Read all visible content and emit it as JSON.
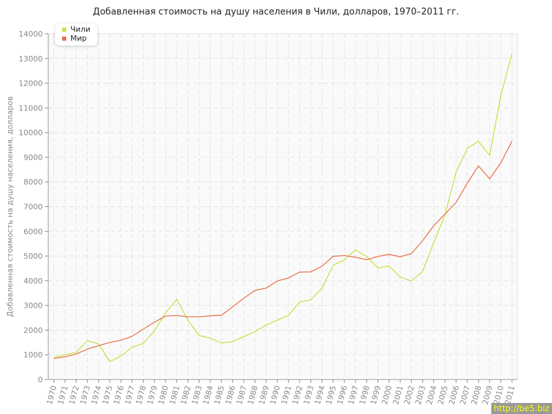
{
  "chart_data": {
    "type": "line",
    "title": "Добавленная стоимость на душу населения в Чили, долларов, 1970–2011 гг.",
    "xlabel": "",
    "ylabel": "Добавленная стоимость на душу населения, долларов",
    "ylim": [
      0,
      14000
    ],
    "yticks": [
      0,
      1000,
      2000,
      3000,
      4000,
      5000,
      6000,
      7000,
      8000,
      9000,
      10000,
      11000,
      12000,
      13000,
      14000
    ],
    "grid": true,
    "legend_placement": "top-left",
    "x": [
      1970,
      1971,
      1972,
      1973,
      1974,
      1975,
      1976,
      1977,
      1978,
      1979,
      1980,
      1981,
      1982,
      1983,
      1984,
      1985,
      1986,
      1987,
      1988,
      1989,
      1990,
      1991,
      1992,
      1993,
      1994,
      1995,
      1996,
      1997,
      1998,
      1999,
      2000,
      2001,
      2002,
      2003,
      2004,
      2005,
      2006,
      2007,
      2008,
      2009,
      2010,
      2011
    ],
    "series": [
      {
        "name": "Чили",
        "color": "#c5e04a",
        "values": [
          900,
          1000,
          1100,
          1570,
          1450,
          720,
          950,
          1300,
          1460,
          1970,
          2700,
          3250,
          2400,
          1780,
          1680,
          1480,
          1530,
          1740,
          1940,
          2210,
          2400,
          2600,
          3140,
          3220,
          3700,
          4630,
          4840,
          5250,
          4980,
          4520,
          4590,
          4150,
          3990,
          4370,
          5550,
          6650,
          8400,
          9360,
          9640,
          9080,
          11500,
          13200
        ]
      },
      {
        "name": "Мир",
        "color": "#e8734a",
        "values": [
          850,
          920,
          1030,
          1230,
          1370,
          1500,
          1590,
          1750,
          2040,
          2320,
          2570,
          2590,
          2540,
          2540,
          2580,
          2600,
          2940,
          3290,
          3610,
          3700,
          3990,
          4110,
          4350,
          4360,
          4590,
          4990,
          5020,
          4950,
          4850,
          4980,
          5070,
          4970,
          5100,
          5620,
          6230,
          6700,
          7170,
          7950,
          8650,
          8130,
          8770,
          9660
        ]
      }
    ]
  },
  "watermark": "http://be5.biz"
}
